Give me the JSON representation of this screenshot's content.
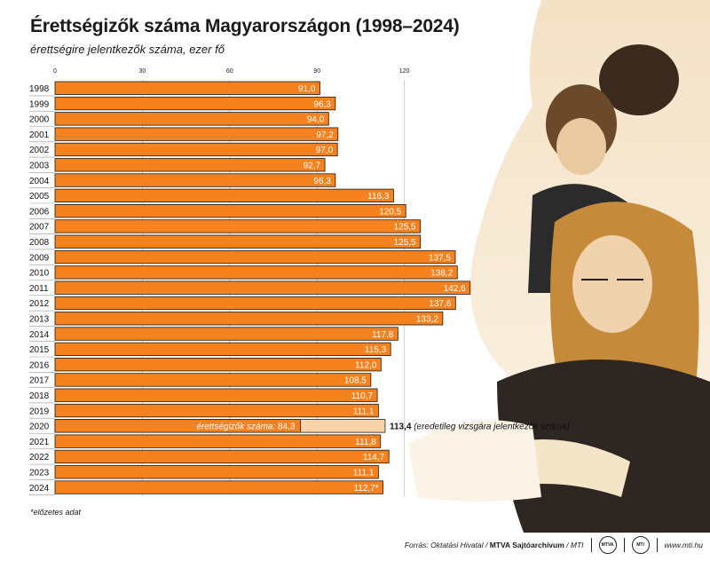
{
  "title": "Érettségizők száma Magyarországon (1998–2024)",
  "subtitle": "érettségire jelentkezők száma, ezer fő",
  "footnote": "*előzetes adat",
  "footer": {
    "source_prefix": "Forrás: Oktatási Hivatal / ",
    "source_bold": "MTVA Sajtóarchívum",
    "source_suffix": " / MTI",
    "logo1": "MTVA",
    "logo2": "MTI",
    "url": "www.mti.hu"
  },
  "colors": {
    "bar": "#f5821f",
    "bar_light": "#fbd3a8",
    "grid": "#c8c8c8",
    "stroke": "#1a1a1a"
  },
  "chart_data": {
    "type": "bar",
    "orientation": "horizontal",
    "xlim": [
      0,
      150
    ],
    "xticks": [
      0,
      30,
      60,
      90,
      120
    ],
    "grid": true,
    "categories": [
      "1998",
      "1999",
      "2000",
      "2001",
      "2002",
      "2003",
      "2004",
      "2005",
      "2006",
      "2007",
      "2008",
      "2009",
      "2010",
      "2011",
      "2012",
      "2013",
      "2014",
      "2015",
      "2016",
      "2017",
      "2018",
      "2019",
      "2020",
      "2021",
      "2022",
      "2023",
      "2024"
    ],
    "values": [
      91.0,
      96.3,
      94.0,
      97.2,
      97.0,
      92.7,
      96.3,
      116.3,
      120.5,
      125.5,
      125.5,
      137.5,
      138.2,
      142.6,
      137.6,
      133.2,
      117.8,
      115.3,
      112.0,
      108.5,
      110.7,
      111.1,
      113.4,
      111.8,
      114.7,
      111.1,
      112.7
    ],
    "labels": [
      "91,0",
      "96,3",
      "94,0",
      "97,2",
      "97,0",
      "92,7",
      "96,3",
      "116,3",
      "120,5",
      "125,5",
      "125,5",
      "137,5",
      "138,2",
      "142,6",
      "137,6",
      "133,2",
      "117,8",
      "115,3",
      "112,0",
      "108,5",
      "110,7",
      "111,1",
      "113,4",
      "111,8",
      "114,7",
      "111,1",
      "112,7*"
    ],
    "special": {
      "year": "2020",
      "inner_value": 84.3,
      "inner_text": "érettségizők száma:",
      "inner_label": "84,3",
      "outer_label": "113,4",
      "outer_note": "(eredetileg vizsgára jelentkezők száma)"
    }
  }
}
